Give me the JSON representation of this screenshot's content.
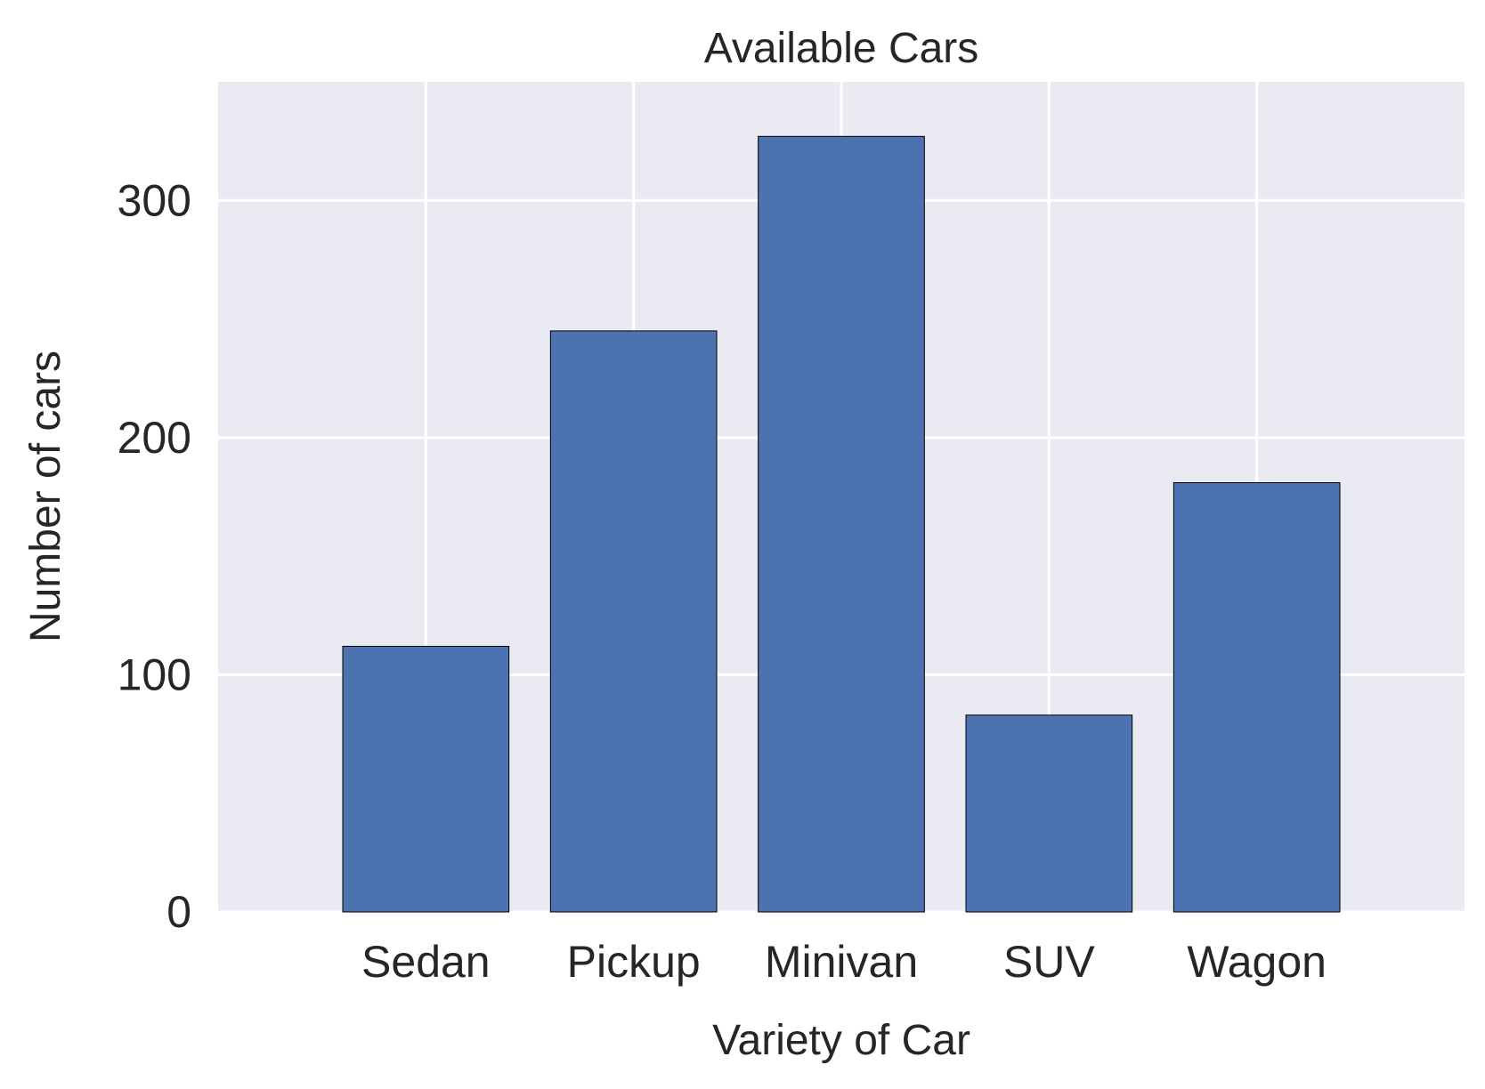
{
  "chart_data": {
    "type": "bar",
    "title": "Available Cars",
    "xlabel": "Variety of Car",
    "ylabel": "Number of cars",
    "categories": [
      "Sedan",
      "Pickup",
      "Minivan",
      "SUV",
      "Wagon"
    ],
    "values": [
      112,
      245,
      327,
      83,
      181
    ],
    "ylim": [
      0,
      350
    ],
    "yticks": [
      0,
      100,
      200,
      300
    ],
    "grid": true,
    "colors": {
      "bar": "#4c72b0",
      "bar_edge": "#000000",
      "plot_bg": "#eaeaf2",
      "grid": "#ffffff",
      "text": "#262626"
    }
  }
}
